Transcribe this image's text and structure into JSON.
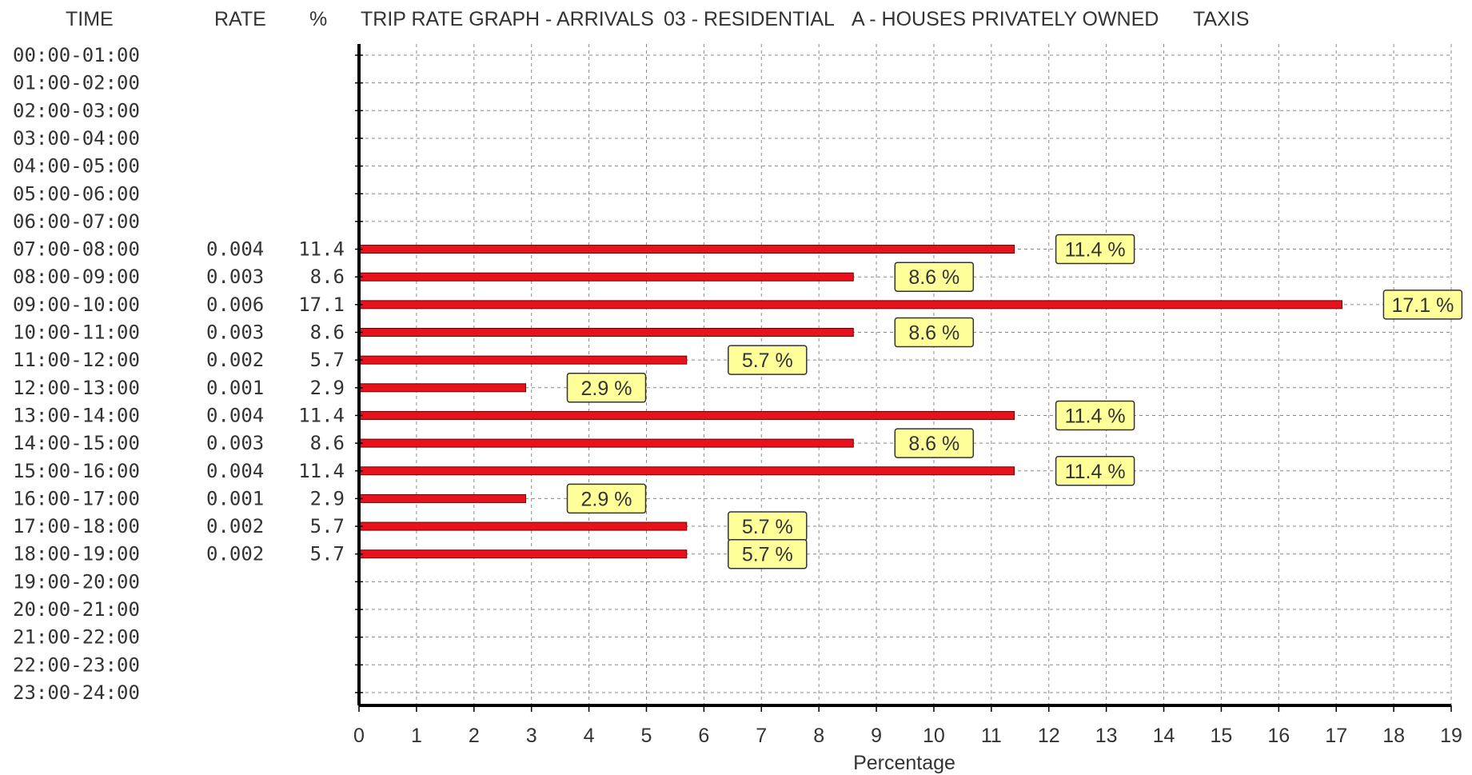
{
  "header": {
    "time": "TIME",
    "rate": "RATE",
    "pct": "%",
    "title": "TRIP RATE GRAPH - ARRIVALS",
    "category": "03 - RESIDENTIAL",
    "subcategory": "A - HOUSES PRIVATELY OWNED",
    "mode": "TAXIS"
  },
  "chart_data": {
    "type": "bar",
    "orientation": "horizontal",
    "title": "TRIP RATE GRAPH - ARRIVALS 03 - RESIDENTIAL A - HOUSES PRIVATELY OWNED TAXIS",
    "xlabel": "Percentage",
    "ylabel": "",
    "xlim": [
      0,
      19
    ],
    "xticks": [
      0,
      1,
      2,
      3,
      4,
      5,
      6,
      7,
      8,
      9,
      10,
      11,
      12,
      13,
      14,
      15,
      16,
      17,
      18,
      19
    ],
    "grid": true,
    "bar_color": "#e8121d",
    "label_bg": "#ffff99",
    "rows": [
      {
        "time": "00:00-01:00",
        "rate": "",
        "pct": "",
        "value": null,
        "label": ""
      },
      {
        "time": "01:00-02:00",
        "rate": "",
        "pct": "",
        "value": null,
        "label": ""
      },
      {
        "time": "02:00-03:00",
        "rate": "",
        "pct": "",
        "value": null,
        "label": ""
      },
      {
        "time": "03:00-04:00",
        "rate": "",
        "pct": "",
        "value": null,
        "label": ""
      },
      {
        "time": "04:00-05:00",
        "rate": "",
        "pct": "",
        "value": null,
        "label": ""
      },
      {
        "time": "05:00-06:00",
        "rate": "",
        "pct": "",
        "value": null,
        "label": ""
      },
      {
        "time": "06:00-07:00",
        "rate": "",
        "pct": "",
        "value": null,
        "label": ""
      },
      {
        "time": "07:00-08:00",
        "rate": "0.004",
        "pct": "11.4",
        "value": 11.4,
        "label": "11.4 %"
      },
      {
        "time": "08:00-09:00",
        "rate": "0.003",
        "pct": "8.6",
        "value": 8.6,
        "label": "8.6 %"
      },
      {
        "time": "09:00-10:00",
        "rate": "0.006",
        "pct": "17.1",
        "value": 17.1,
        "label": "17.1 %"
      },
      {
        "time": "10:00-11:00",
        "rate": "0.003",
        "pct": "8.6",
        "value": 8.6,
        "label": "8.6 %"
      },
      {
        "time": "11:00-12:00",
        "rate": "0.002",
        "pct": "5.7",
        "value": 5.7,
        "label": "5.7 %"
      },
      {
        "time": "12:00-13:00",
        "rate": "0.001",
        "pct": "2.9",
        "value": 2.9,
        "label": "2.9 %"
      },
      {
        "time": "13:00-14:00",
        "rate": "0.004",
        "pct": "11.4",
        "value": 11.4,
        "label": "11.4 %"
      },
      {
        "time": "14:00-15:00",
        "rate": "0.003",
        "pct": "8.6",
        "value": 8.6,
        "label": "8.6 %"
      },
      {
        "time": "15:00-16:00",
        "rate": "0.004",
        "pct": "11.4",
        "value": 11.4,
        "label": "11.4 %"
      },
      {
        "time": "16:00-17:00",
        "rate": "0.001",
        "pct": "2.9",
        "value": 2.9,
        "label": "2.9 %"
      },
      {
        "time": "17:00-18:00",
        "rate": "0.002",
        "pct": "5.7",
        "value": 5.7,
        "label": "5.7 %"
      },
      {
        "time": "18:00-19:00",
        "rate": "0.002",
        "pct": "5.7",
        "value": 5.7,
        "label": "5.7 %"
      },
      {
        "time": "19:00-20:00",
        "rate": "",
        "pct": "",
        "value": null,
        "label": ""
      },
      {
        "time": "20:00-21:00",
        "rate": "",
        "pct": "",
        "value": null,
        "label": ""
      },
      {
        "time": "21:00-22:00",
        "rate": "",
        "pct": "",
        "value": null,
        "label": ""
      },
      {
        "time": "22:00-23:00",
        "rate": "",
        "pct": "",
        "value": null,
        "label": ""
      },
      {
        "time": "23:00-24:00",
        "rate": "",
        "pct": "",
        "value": null,
        "label": ""
      }
    ]
  }
}
